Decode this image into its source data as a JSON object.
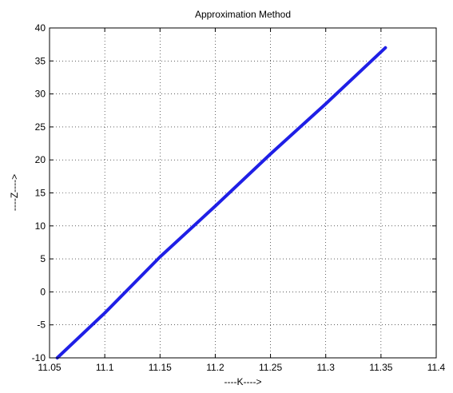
{
  "chart_data": {
    "type": "line",
    "title": "Approximation Method",
    "xlabel": "----K---->",
    "ylabel": "----Z---->",
    "xlim": [
      11.05,
      11.4
    ],
    "ylim": [
      -10,
      40
    ],
    "xticks": [
      11.05,
      11.1,
      11.15,
      11.2,
      11.25,
      11.3,
      11.35,
      11.4
    ],
    "xtick_labels": [
      "11.05",
      "11.1",
      "11.15",
      "11.2",
      "11.25",
      "11.3",
      "11.35",
      "11.4"
    ],
    "yticks": [
      -10,
      -5,
      0,
      5,
      10,
      15,
      20,
      25,
      30,
      35,
      40
    ],
    "ytick_labels": [
      "-10",
      "-5",
      "0",
      "5",
      "10",
      "15",
      "20",
      "25",
      "30",
      "35",
      "40"
    ],
    "grid": true,
    "series": [
      {
        "color": "#1f1fe6",
        "x": [
          11.057,
          11.1,
          11.15,
          11.2,
          11.25,
          11.3,
          11.354
        ],
        "y": [
          -10,
          -3.2,
          5.3,
          13.0,
          20.9,
          28.5,
          37.0
        ]
      }
    ]
  }
}
